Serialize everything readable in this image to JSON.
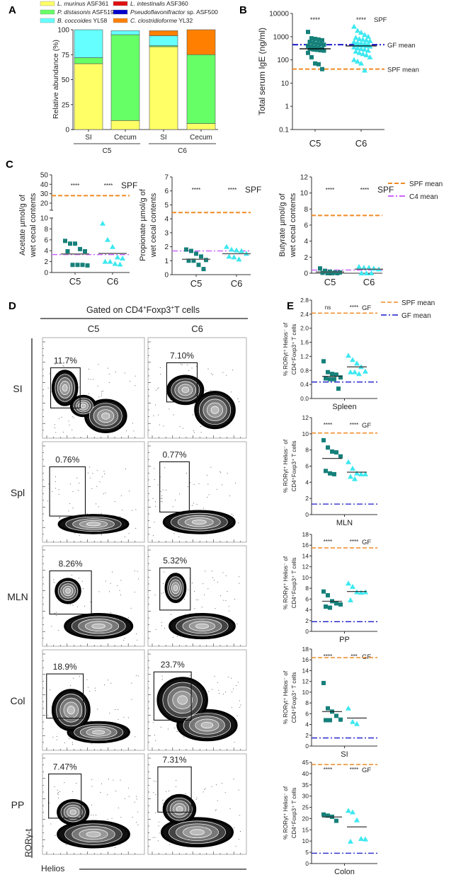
{
  "chart_data": [
    {
      "panel": "A",
      "type": "bar",
      "stacked": true,
      "ylabel": "Relative abundance (%)",
      "ylim": [
        0,
        100
      ],
      "yticks": [
        "0",
        "25",
        "50",
        "75",
        "100"
      ],
      "categories": [
        "SI",
        "Cecum",
        "SI",
        "Cecum"
      ],
      "groups": [
        {
          "label": "C5",
          "categories": [
            0,
            1
          ]
        },
        {
          "label": "C6",
          "categories": [
            2,
            3
          ]
        }
      ],
      "series": [
        {
          "species": "L. murinus",
          "strain": "ASF361",
          "color": "#ffff66",
          "values": [
            66,
            9,
            83,
            6
          ]
        },
        {
          "species": "L. intestinalis",
          "strain": "ASF360",
          "color": "#e01010",
          "values": [
            0,
            0,
            0,
            0
          ]
        },
        {
          "species": "P. distasonis",
          "strain": "ASF519",
          "color": "#66ff66",
          "values": [
            6,
            86,
            1,
            69
          ]
        },
        {
          "species": "Pseudoflavonifractor",
          "strain": "sp. ASF500",
          "color": "#0000cc",
          "values": [
            0,
            0,
            0,
            0
          ]
        },
        {
          "species": "B. coccoides",
          "strain": "YL58",
          "color": "#66ffff",
          "values": [
            28,
            4,
            10,
            0
          ]
        },
        {
          "species": "C. clostridioforme",
          "strain": "YL32",
          "color": "#ff8000",
          "values": [
            0,
            0,
            5,
            25
          ]
        }
      ]
    },
    {
      "panel": "B",
      "type": "scatter",
      "yscale": "log",
      "ylabel": "Total serum IgE (ng/ml)",
      "ylim": [
        0.1,
        10000
      ],
      "yticks": [
        "0.1",
        "1",
        "10",
        "100",
        "1000",
        "10000"
      ],
      "categories": [
        "C5",
        "C6"
      ],
      "series": [
        {
          "name": "C5",
          "marker": "square",
          "color": "#16807a",
          "median": 300,
          "values": [
            1600,
            850,
            800,
            750,
            700,
            600,
            550,
            500,
            480,
            450,
            400,
            380,
            350,
            320,
            300,
            300,
            280,
            270,
            260,
            250,
            200,
            130,
            70,
            65,
            40
          ]
        },
        {
          "name": "C6",
          "marker": "triangle",
          "color": "#3ee8f0",
          "median": 400,
          "values": [
            2700,
            1800,
            1500,
            1200,
            1000,
            900,
            800,
            750,
            700,
            650,
            600,
            550,
            520,
            500,
            480,
            450,
            430,
            420,
            400,
            380,
            350,
            320,
            300,
            280,
            250,
            230,
            200,
            180,
            160,
            130,
            100,
            85,
            70,
            35
          ]
        }
      ],
      "significance": [
        "****",
        "****"
      ],
      "significance_suffix": "SPF",
      "reference_lines": [
        {
          "label": "GF mean",
          "value": 450,
          "color": "#1a1acc",
          "style": "dashdot"
        },
        {
          "label": "SPF mean",
          "value": 40,
          "color": "#f08a24",
          "style": "dashed"
        }
      ]
    },
    {
      "panel": "C",
      "type": "scatter",
      "subplots": [
        {
          "ylabel": [
            "Acetate µmol/g of",
            "wet cecal contents"
          ],
          "axis_break": [
            10,
            20
          ],
          "ylim": [
            0,
            50
          ],
          "yticks_lower": [
            "0",
            "2",
            "4",
            "6",
            "8",
            "10"
          ],
          "yticks_upper": [
            "20",
            "30",
            "40",
            "50"
          ],
          "categories": [
            "C5",
            "C6"
          ],
          "significance": [
            "****",
            "****"
          ],
          "significance_suffix": "SPF",
          "spf_mean": 28,
          "c4_mean": 3.3,
          "c5": {
            "values": [
              5.8,
              5.3,
              5.3,
              4.3,
              3.9,
              3.9,
              1.4,
              1.4,
              1.4,
              1.3
            ],
            "mean": 3.4
          },
          "c6": {
            "values": [
              9.0,
              6.0,
              4.7,
              2.8,
              2.6,
              2.0,
              2.0,
              1.6,
              1.5
            ],
            "mean": 3.5
          }
        },
        {
          "ylabel": [
            "Propionate µmol/g of",
            "wet cecal contents"
          ],
          "ylim": [
            0,
            7
          ],
          "yticks": [
            "0",
            "1",
            "2",
            "3",
            "4",
            "5",
            "6",
            "7"
          ],
          "categories": [
            "C5",
            "C6"
          ],
          "significance": [
            "****",
            "****"
          ],
          "significance_suffix": "SPF",
          "spf_mean": 4.45,
          "c4_mean": 1.7,
          "c5": {
            "values": [
              1.8,
              1.7,
              1.5,
              1.3,
              1.05,
              1.0,
              1.0,
              0.7,
              0.4
            ],
            "mean": 1.1
          },
          "c6": {
            "values": [
              2.0,
              1.8,
              1.75,
              1.7,
              1.5,
              1.3,
              1.25,
              1.1
            ],
            "mean": 1.5
          }
        },
        {
          "ylabel": [
            "Butyrate µmol/g of",
            "wet cecal contents"
          ],
          "ylim": [
            0,
            12
          ],
          "yticks": [
            "0",
            "2",
            "4",
            "6",
            "8",
            "10",
            "12"
          ],
          "categories": [
            "C5",
            "C6"
          ],
          "significance": [
            "****",
            "****"
          ],
          "significance_suffix": "SPF",
          "spf_mean": 7.2,
          "c4_mean": 0.4,
          "c5": {
            "values": [
              0.6,
              0.3,
              0.2,
              0.1,
              0.1,
              0.05,
              0,
              0,
              0
            ],
            "mean": 0.15
          },
          "c6": {
            "values": [
              0.8,
              0.7,
              0.7,
              0.6,
              0.5,
              0,
              0,
              0
            ],
            "mean": 0.5
          }
        }
      ],
      "legend": [
        {
          "label": "SPF mean",
          "color": "#f08a24",
          "style": "dashed"
        },
        {
          "label": "C4 mean",
          "color": "#cc66ff",
          "style": "dashdot"
        }
      ]
    },
    {
      "panel": "E",
      "type": "scatter",
      "ylabel": [
        "% RORγt⁺ Helios⁻ of",
        "CD4⁺Foxp3⁺ T cells"
      ],
      "legend": [
        {
          "label": "SPF mean",
          "color": "#f08a24",
          "style": "dashed"
        },
        {
          "label": "GF mean",
          "color": "#1a1acc",
          "style": "dashdot"
        }
      ],
      "subplots": [
        {
          "tissue": "Spleen",
          "ylim": [
            0,
            2.8
          ],
          "yticks": [
            "0.0",
            "0.4",
            "0.8",
            "1.2",
            "1.6",
            "2.0",
            "2.4",
            "2.8"
          ],
          "significance": [
            "ns",
            "****"
          ],
          "significance_suffix": "GF",
          "spf_mean": 2.43,
          "gf_mean": 0.47,
          "c5": {
            "values": [
              1.06,
              0.75,
              0.7,
              0.68,
              0.6,
              0.57,
              0.55,
              0.55,
              0.28
            ],
            "mean": 0.63
          },
          "c6": {
            "values": [
              1.22,
              1.1,
              1.0,
              0.9,
              0.77,
              0.75,
              0.75,
              0.7
            ],
            "mean": 0.9
          }
        },
        {
          "tissue": "MLN",
          "ylim": [
            0,
            12
          ],
          "yticks": [
            "0",
            "2",
            "4",
            "6",
            "8",
            "10",
            "12"
          ],
          "significance": [
            "****",
            "****"
          ],
          "significance_suffix": "GF",
          "spf_mean": 10.1,
          "gf_mean": 1.3,
          "c5": {
            "values": [
              9.2,
              8.3,
              7.8,
              7.7,
              7.2,
              5.4,
              5.1,
              5.0
            ],
            "mean": 6.95
          },
          "c6": {
            "values": [
              6.5,
              5.7,
              5.1,
              5.0,
              5.0,
              4.7,
              4.4
            ],
            "mean": 5.25
          }
        },
        {
          "tissue": "PP",
          "ylim": [
            0,
            18
          ],
          "yticks": [
            "0",
            "2",
            "4",
            "6",
            "8",
            "10",
            "12",
            "14",
            "16",
            "18"
          ],
          "significance": [
            "****",
            "****"
          ],
          "significance_suffix": "GF",
          "spf_mean": 15.5,
          "gf_mean": 1.8,
          "c5": {
            "values": [
              7.4,
              6.7,
              5.6,
              5.2,
              5.0,
              4.6,
              4.4
            ],
            "mean": 5.6
          },
          "c6": {
            "values": [
              8.9,
              8.3,
              7.3,
              7.2,
              7.3,
              5.8
            ],
            "mean": 7.4
          }
        },
        {
          "tissue": "SI",
          "ylim": [
            0,
            18
          ],
          "yticks": [
            "0",
            "2",
            "4",
            "6",
            "8",
            "10",
            "12",
            "14",
            "16",
            "18"
          ],
          "significance": [
            "****",
            "***"
          ],
          "significance_suffix": "GF",
          "spf_mean": 16.4,
          "gf_mean": 1.5,
          "c5": {
            "values": [
              11.7,
              7.0,
              6.4,
              5.6,
              4.9,
              4.8,
              4.8
            ],
            "mean": 6.4
          },
          "c6": {
            "values": [
              7.0,
              4.5,
              4.1
            ],
            "mean": 5.2
          }
        },
        {
          "tissue": "Colon",
          "ylim": [
            0,
            45
          ],
          "yticks": [
            "0",
            "5",
            "10",
            "15",
            "20",
            "25",
            "30",
            "35",
            "40",
            "45"
          ],
          "significance": [
            "****",
            "****"
          ],
          "significance_suffix": "GF",
          "spf_mean": 44,
          "gf_mean": 4.6,
          "c5": {
            "values": [
              21.8,
              21.3,
              20.8,
              19.0
            ],
            "mean": 20.7
          },
          "c6": {
            "values": [
              23.5,
              22.8,
              19.3,
              11.0,
              10.8,
              9.8
            ],
            "mean": 16.3
          }
        }
      ]
    }
  ],
  "flow_panel": {
    "panel": "D",
    "title_parts": [
      "Gated on CD4",
      "+",
      "Foxp3",
      "+",
      "T cells"
    ],
    "columns": [
      "C5",
      "C6"
    ],
    "rows": [
      {
        "label": "SI",
        "gates": [
          "11.7%",
          "7.10%"
        ]
      },
      {
        "label": "Spl",
        "gates": [
          "0.76%",
          "0.77%"
        ]
      },
      {
        "label": "MLN",
        "gates": [
          "8.26%",
          "5.32%"
        ]
      },
      {
        "label": "Col",
        "gates": [
          "18.9%",
          "23.7%"
        ]
      },
      {
        "label": "PP",
        "gates": [
          "7.47%",
          "7.31%"
        ]
      }
    ],
    "y_axis": "RORγ-t",
    "x_axis": "Helios"
  },
  "panel_labels": [
    "A",
    "B",
    "C",
    "D",
    "E"
  ]
}
